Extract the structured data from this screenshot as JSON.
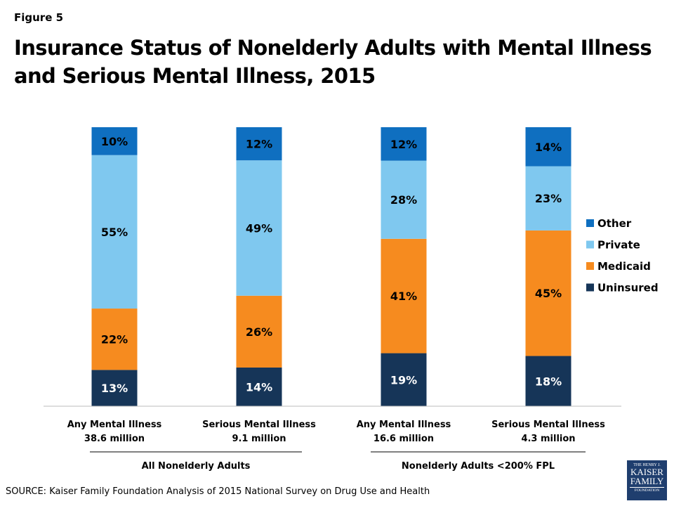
{
  "figure_label": "Figure 5",
  "title": "Insurance Status of Nonelderly Adults with Mental Illness and Serious Mental Illness, 2015",
  "source": "SOURCE: Kaiser Family Foundation Analysis of 2015 National Survey on Drug Use and Health",
  "logo": {
    "line1": "THE HENRY J.",
    "line2": "KAISER",
    "line3": "FAMILY",
    "line4": "FOUNDATION"
  },
  "chart_data": {
    "type": "bar",
    "stacked": true,
    "ylim": [
      0,
      100
    ],
    "grid": false,
    "legend_position": "right",
    "categories": [
      {
        "label": "Any Mental Illness",
        "sub": "38.6 million"
      },
      {
        "label": "Serious Mental Illness",
        "sub": "9.1 million"
      },
      {
        "label": "Any Mental Illness",
        "sub": "16.6 million"
      },
      {
        "label": "Serious Mental Illness",
        "sub": "4.3 million"
      }
    ],
    "groups": [
      {
        "label": "All Nonelderly Adults",
        "categories": [
          0,
          1
        ]
      },
      {
        "label": "Nonelderly Adults <200% FPL",
        "categories": [
          2,
          3
        ]
      }
    ],
    "series": [
      {
        "name": "Uninsured",
        "color": "#163558",
        "values": [
          13,
          14,
          19,
          18
        ]
      },
      {
        "name": "Medicaid",
        "color": "#f68b1f",
        "values": [
          22,
          26,
          41,
          45
        ]
      },
      {
        "name": "Private",
        "color": "#7fc8ef",
        "values": [
          55,
          49,
          28,
          23
        ]
      },
      {
        "name": "Other",
        "color": "#0f6fc0",
        "values": [
          10,
          12,
          12,
          14
        ]
      }
    ],
    "legend_order": [
      "Other",
      "Private",
      "Medicaid",
      "Uninsured"
    ]
  }
}
